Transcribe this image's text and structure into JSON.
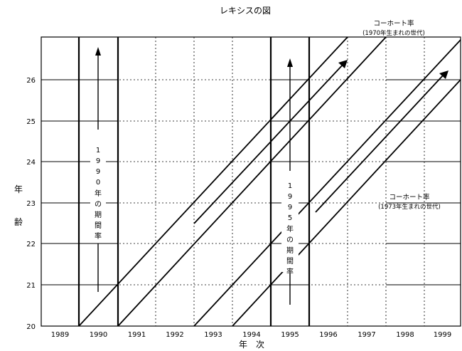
{
  "title": "レキシスの図",
  "x_axis": {
    "label": "年　次",
    "ticks": [
      "1989",
      "1990",
      "1991",
      "1992",
      "1993",
      "1994",
      "1995",
      "1996",
      "1997",
      "1998",
      "1999"
    ]
  },
  "y_axis": {
    "label_top": "年",
    "label_bottom": "齢",
    "ticks": [
      "20",
      "21",
      "22",
      "23",
      "24",
      "25",
      "26"
    ]
  },
  "period_1990": {
    "digits": [
      "1",
      "9",
      "9",
      "0"
    ],
    "suffix": [
      "年",
      "の",
      "期",
      "間",
      "率"
    ]
  },
  "period_1995": {
    "digits": [
      "1",
      "9",
      "9",
      "5"
    ],
    "suffix": [
      "年",
      "の",
      "期",
      "間",
      "率"
    ]
  },
  "cohort_1970": {
    "line1": "コーホート率",
    "line2": "(1970年生まれの世代)"
  },
  "cohort_1973": {
    "line1": "コーホート率",
    "line2": "(1973年生まれの世代)"
  }
}
